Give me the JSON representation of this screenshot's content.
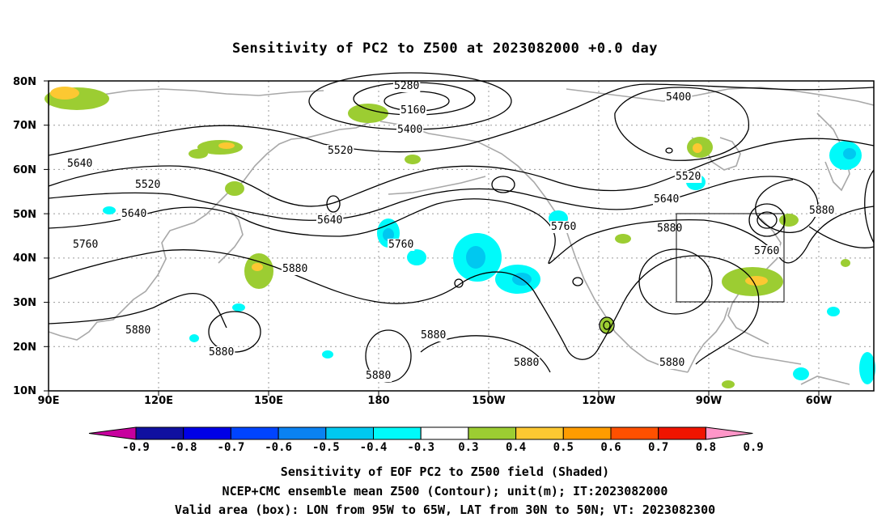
{
  "title": "Sensitivity of PC2 to Z500 at 2023082000 +0.0 day",
  "lat_labels": [
    "80N",
    "70N",
    "60N",
    "50N",
    "40N",
    "30N",
    "20N",
    "10N"
  ],
  "lon_labels": [
    "90E",
    "120E",
    "150E",
    "180",
    "150W",
    "120W",
    "90W",
    "60W"
  ],
  "contour_labels": [
    "5280",
    "5160",
    "5400",
    "5400",
    "5520",
    "5520",
    "5640",
    "5520",
    "5640",
    "5640",
    "5640",
    "5760",
    "5760",
    "5760",
    "5880",
    "5880",
    "5760",
    "5880",
    "5880",
    "5880",
    "5880",
    "5880",
    "5880",
    "5880"
  ],
  "colorbar": {
    "labels": [
      "-0.9",
      "-0.8",
      "-0.7",
      "-0.6",
      "-0.5",
      "-0.4",
      "-0.3",
      "0.3",
      "0.4",
      "0.5",
      "0.6",
      "0.7",
      "0.8",
      "0.9"
    ],
    "colors": [
      "#c7009e",
      "#1010a0",
      "#0000e6",
      "#0044ff",
      "#0a82f2",
      "#00c8f0",
      "#00fafa",
      "#ffffff",
      "#9ccd32",
      "#fcc832",
      "#ff9c00",
      "#ff5000",
      "#f01400",
      "#ff96c8"
    ]
  },
  "captions": {
    "line1": "Sensitivity of EOF PC2 to Z500 field (Shaded)",
    "line2": "NCEP+CMC ensemble mean Z500 (Contour); unit(m); IT:2023082000",
    "line3": "Valid area (box): LON from 95W to 65W, LAT from 30N to 50N; VT: 2023082300"
  }
}
